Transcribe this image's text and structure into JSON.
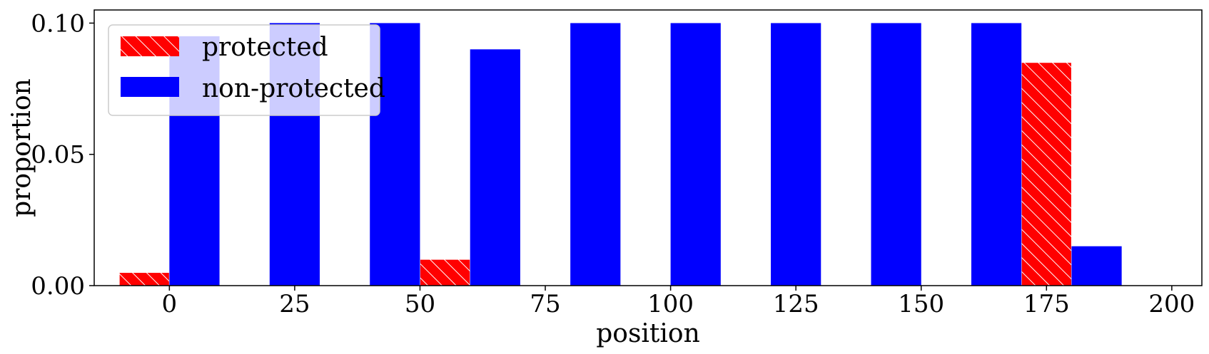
{
  "chart_data": {
    "type": "bar",
    "xlabel": "position",
    "ylabel": "proportion",
    "xlim": [
      -15,
      206
    ],
    "ylim": [
      0,
      0.105
    ],
    "xticks": [
      {
        "value": 0,
        "label": "0"
      },
      {
        "value": 25,
        "label": "25"
      },
      {
        "value": 50,
        "label": "50"
      },
      {
        "value": 75,
        "label": "75"
      },
      {
        "value": 100,
        "label": "100"
      },
      {
        "value": 125,
        "label": "125"
      },
      {
        "value": 150,
        "label": "150"
      },
      {
        "value": 175,
        "label": "175"
      },
      {
        "value": 200,
        "label": "200"
      }
    ],
    "yticks": [
      {
        "value": 0.0,
        "label": "0.00"
      },
      {
        "value": 0.05,
        "label": "0.05"
      },
      {
        "value": 0.1,
        "label": "0.10"
      }
    ],
    "grid": false,
    "legend_position": "top-left",
    "bins": [
      0,
      20,
      40,
      60,
      80,
      100,
      120,
      140,
      160,
      180
    ],
    "bar_width": 10,
    "series": [
      {
        "name": "protected",
        "color": "#ff0000",
        "hatch": "diagonal",
        "offset": -5,
        "values": [
          0.005,
          0.0,
          0.0,
          0.01,
          0.0,
          0.0,
          0.0,
          0.0,
          0.0,
          0.085
        ]
      },
      {
        "name": "non-protected",
        "color": "#0000ff",
        "hatch": "none",
        "offset": 5,
        "values": [
          0.095,
          0.1,
          0.1,
          0.09,
          0.1,
          0.1,
          0.1,
          0.1,
          0.1,
          0.015
        ]
      }
    ]
  }
}
